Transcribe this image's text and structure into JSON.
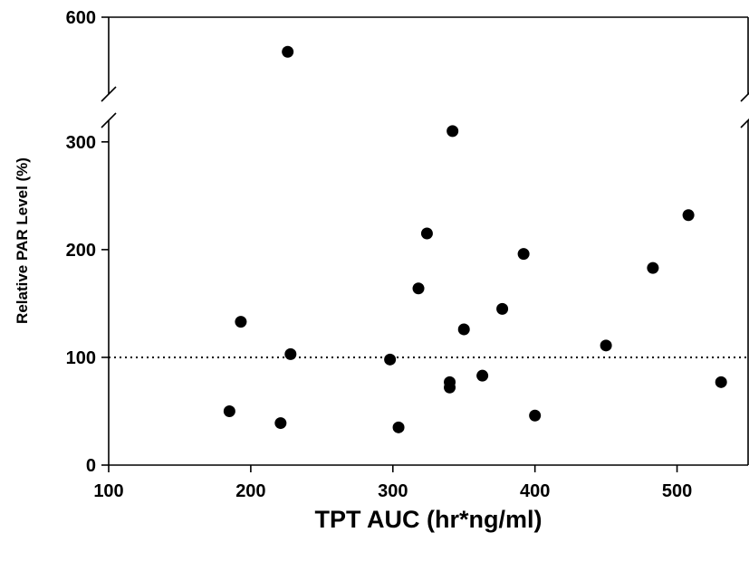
{
  "chart_data": {
    "type": "scatter",
    "title": "",
    "xlabel": "TPT AUC (hr*ng/ml)",
    "ylabel": "Relative PAR Level (%)",
    "xlim": [
      100,
      550
    ],
    "ylim": [
      0,
      600
    ],
    "y_axis_break": [
      320,
      500
    ],
    "x_ticks": [
      100,
      200,
      300,
      400,
      500
    ],
    "y_ticks": [
      0,
      100,
      200,
      300,
      600
    ],
    "grid": false,
    "legend": "none",
    "reference_line": {
      "y": 100,
      "style": "dotted"
    },
    "point_color": "#000000",
    "points": [
      {
        "x": 185,
        "y": 50
      },
      {
        "x": 193,
        "y": 133
      },
      {
        "x": 221,
        "y": 39
      },
      {
        "x": 226,
        "y": 555
      },
      {
        "x": 228,
        "y": 103
      },
      {
        "x": 298,
        "y": 98
      },
      {
        "x": 304,
        "y": 35
      },
      {
        "x": 318,
        "y": 164
      },
      {
        "x": 324,
        "y": 215
      },
      {
        "x": 340,
        "y": 77
      },
      {
        "x": 340,
        "y": 72
      },
      {
        "x": 342,
        "y": 310
      },
      {
        "x": 350,
        "y": 126
      },
      {
        "x": 363,
        "y": 83
      },
      {
        "x": 377,
        "y": 145
      },
      {
        "x": 392,
        "y": 196
      },
      {
        "x": 400,
        "y": 46
      },
      {
        "x": 450,
        "y": 111
      },
      {
        "x": 483,
        "y": 183
      },
      {
        "x": 508,
        "y": 232
      },
      {
        "x": 531,
        "y": 77
      }
    ]
  }
}
